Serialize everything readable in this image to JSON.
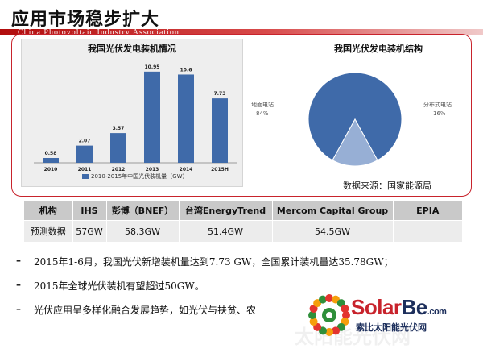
{
  "slide": {
    "title": "应用市场稳步扩大",
    "association": "China Photovoltaic Industry Association"
  },
  "chart_data": [
    {
      "type": "bar",
      "title": "我国光伏发电装机情况",
      "categories": [
        "2010",
        "2011",
        "2012",
        "2013",
        "2014",
        "2015H"
      ],
      "values": [
        0.58,
        2.07,
        3.57,
        10.95,
        10.6,
        7.73
      ],
      "value_labels": [
        "0.58",
        "2.07",
        "3.57",
        "10.95",
        "10.6",
        "7.73"
      ],
      "legend": "2010-2015年中国光伏装机量（GW）",
      "legend_position": "bottom",
      "ylim": [
        0,
        12
      ],
      "grid": false,
      "color": "#3f6aa9"
    },
    {
      "type": "pie",
      "title": "我国光伏发电装机结构",
      "slices": [
        {
          "name": "地面电站",
          "value": 84,
          "label": "84%",
          "color": "#3f6aa9"
        },
        {
          "name": "分布式电站",
          "value": 16,
          "label": "16%",
          "color": "#97afd5"
        }
      ]
    }
  ],
  "source": "数据来源：国家能源局",
  "forecast_table": {
    "headers": [
      "机构",
      "IHS",
      "彭博（BNEF）",
      "台湾EnergyTrend",
      "Mercom Capital Group",
      "EPIA"
    ],
    "row": [
      "预测数据",
      "57GW",
      "58.3GW",
      "51.4GW",
      "54.5GW",
      ""
    ]
  },
  "bullets": [
    {
      "dash": "–",
      "text": "2015年1-6月，我国光伏新增装机量达到7.73 GW，全国累计装机量达35.78GW；"
    },
    {
      "dash": "–",
      "text": "2015年全球光伏装机有望超过50GW。"
    },
    {
      "dash": "–",
      "text": "光伏应用呈多样化融合发展趋势，如光伏与扶贫、农"
    }
  ],
  "logo": {
    "brand_solar": "Solar",
    "brand_be": "Be",
    "domain": ".com",
    "tagline": "索比太阳能光伏网"
  },
  "watermark": "太阳能光伏网",
  "colors": {
    "accent_red": "#c8232c",
    "bar_blue": "#3f6aa9",
    "pie_light": "#97afd5"
  }
}
